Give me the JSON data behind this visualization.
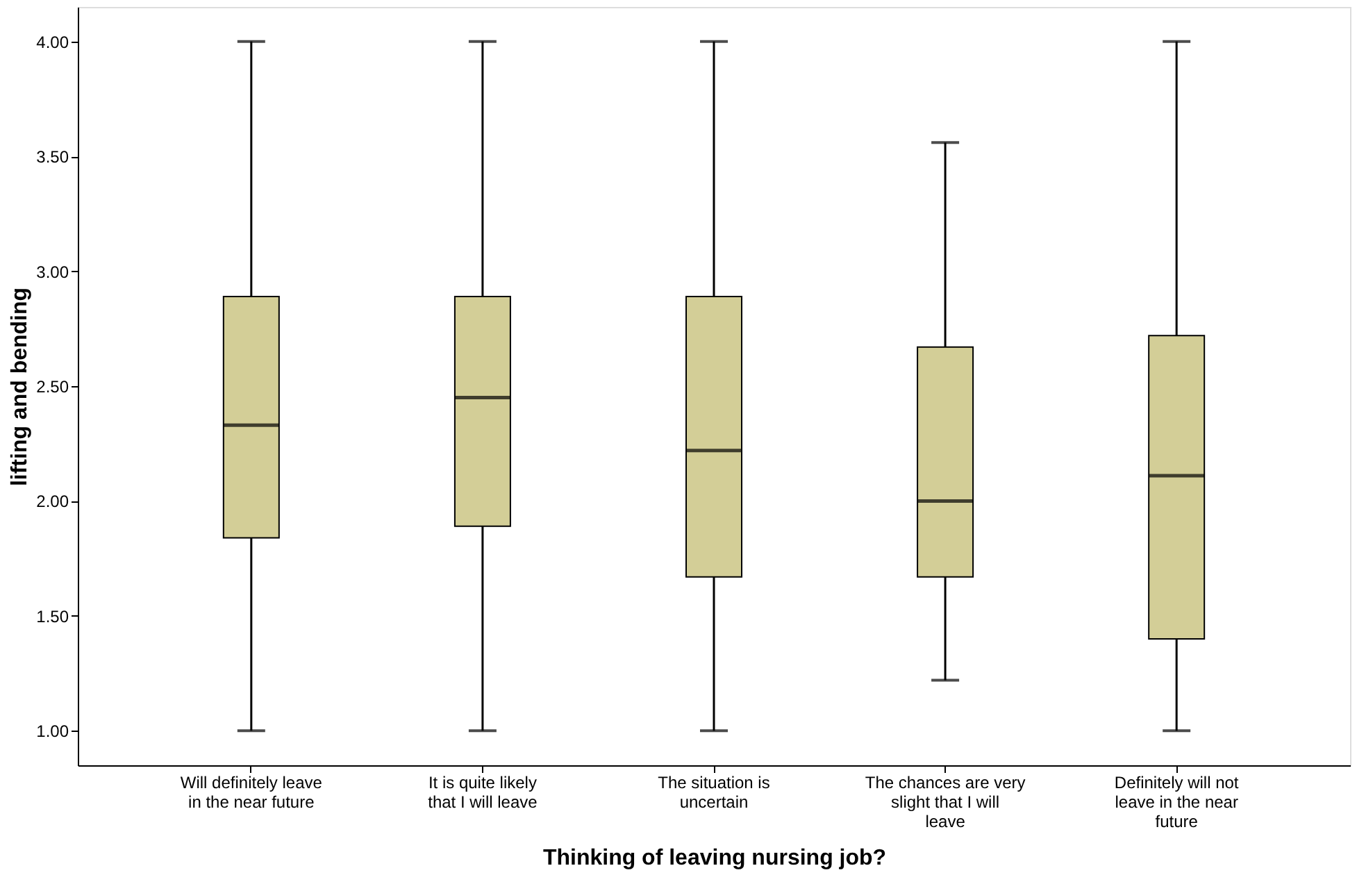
{
  "chart_data": {
    "type": "box",
    "xlabel": "Thinking of leaving nursing job?",
    "ylabel": "lifting and bending",
    "categories": [
      "Will definitely leave in the near future",
      "It is quite likely that I will leave",
      "The situation is uncertain",
      "The chances are very slight that I will leave",
      "Definitely will not leave in the near future"
    ],
    "boxes": [
      {
        "low": 1.0,
        "q1": 1.84,
        "median": 2.33,
        "q3": 2.89,
        "high": 4.0
      },
      {
        "low": 1.0,
        "q1": 1.89,
        "median": 2.45,
        "q3": 2.89,
        "high": 4.0
      },
      {
        "low": 1.0,
        "q1": 1.67,
        "median": 2.22,
        "q3": 2.89,
        "high": 4.0
      },
      {
        "low": 1.22,
        "q1": 1.67,
        "median": 2.0,
        "q3": 2.67,
        "high": 3.56
      },
      {
        "low": 1.0,
        "q1": 1.4,
        "median": 2.11,
        "q3": 2.72,
        "high": 4.0
      }
    ],
    "color": "#d3ce97",
    "ylim": [
      0.85,
      4.15
    ],
    "yticks": [
      {
        "value": 1.0,
        "label": "1.00"
      },
      {
        "value": 1.5,
        "label": "1.50"
      },
      {
        "value": 2.0,
        "label": "2.00"
      },
      {
        "value": 2.5,
        "label": "2.50"
      },
      {
        "value": 3.0,
        "label": "3.00"
      },
      {
        "value": 3.5,
        "label": "3.50"
      },
      {
        "value": 4.0,
        "label": "4.00"
      }
    ],
    "grid": false
  }
}
